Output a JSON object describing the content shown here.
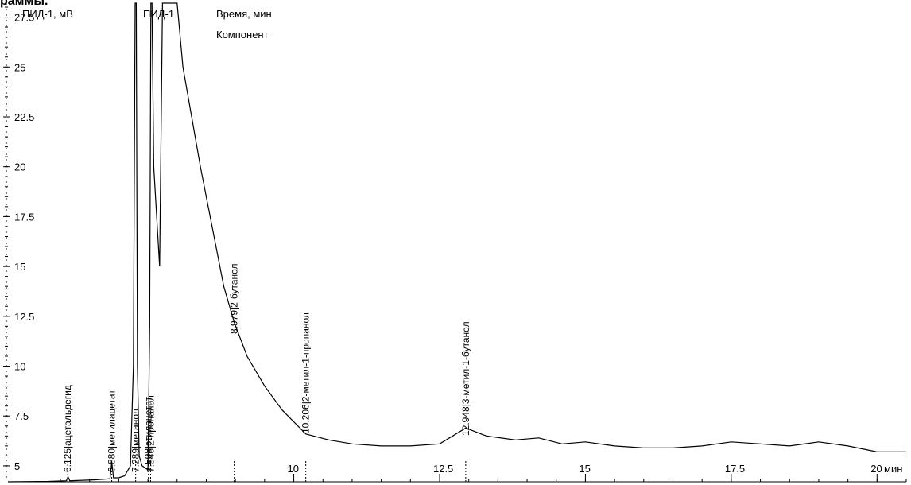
{
  "page_title_fragment": "раммы.",
  "chart_data": {
    "type": "line",
    "ylabel": "ПИД-1, мВ",
    "series_label": "ПИД-1",
    "legend": [
      "Время, мин",
      "Компонент"
    ],
    "x_unit": "мин",
    "xlim": [
      5.1,
      20.5
    ],
    "ylim": [
      4.2,
      28.2
    ],
    "x_ticks": [
      {
        "value": 10,
        "label": "10"
      },
      {
        "value": 12.5,
        "label": "12.5"
      },
      {
        "value": 15,
        "label": "15"
      },
      {
        "value": 17.5,
        "label": "17.5"
      },
      {
        "value": 20,
        "label": "20"
      }
    ],
    "y_ticks": [
      {
        "value": 5,
        "label": "5"
      },
      {
        "value": 7.5,
        "label": "7.5"
      },
      {
        "value": 10,
        "label": "10"
      },
      {
        "value": 12.5,
        "label": "12.5"
      },
      {
        "value": 15,
        "label": "15"
      },
      {
        "value": 17.5,
        "label": "17.5"
      },
      {
        "value": 20,
        "label": "20"
      },
      {
        "value": 22.5,
        "label": "22.5"
      },
      {
        "value": 25,
        "label": "25"
      },
      {
        "value": 27.5,
        "label": "27.5"
      }
    ],
    "series": [
      {
        "values": [
          [
            5.1,
            4.2
          ],
          [
            5.8,
            4.22
          ],
          [
            6.1,
            4.25
          ],
          [
            6.13,
            4.45
          ],
          [
            6.16,
            4.25
          ],
          [
            6.6,
            4.3
          ],
          [
            6.85,
            4.35
          ],
          [
            6.88,
            5.2
          ],
          [
            6.91,
            4.4
          ],
          [
            7.0,
            4.4
          ],
          [
            7.1,
            4.5
          ],
          [
            7.2,
            5.0
          ],
          [
            7.25,
            10.0
          ],
          [
            7.28,
            28.2
          ],
          [
            7.3,
            28.2
          ],
          [
            7.32,
            10.0
          ],
          [
            7.35,
            5.5
          ],
          [
            7.4,
            5.0
          ],
          [
            7.5,
            4.8
          ],
          [
            7.53,
            12.0
          ],
          [
            7.55,
            28.2
          ],
          [
            7.57,
            28.2
          ],
          [
            7.6,
            20.0
          ],
          [
            7.7,
            15.0
          ],
          [
            7.75,
            28.2
          ],
          [
            8.0,
            28.2
          ],
          [
            8.1,
            25.0
          ],
          [
            8.25,
            22.5
          ],
          [
            8.4,
            20.0
          ],
          [
            8.6,
            17.0
          ],
          [
            8.8,
            14.0
          ],
          [
            8.979,
            12.2
          ],
          [
            9.2,
            10.5
          ],
          [
            9.5,
            9.0
          ],
          [
            9.8,
            7.8
          ],
          [
            10.206,
            6.6
          ],
          [
            10.6,
            6.3
          ],
          [
            11.0,
            6.1
          ],
          [
            11.5,
            6.0
          ],
          [
            12.0,
            6.0
          ],
          [
            12.5,
            6.1
          ],
          [
            12.948,
            6.9
          ],
          [
            13.3,
            6.5
          ],
          [
            13.8,
            6.3
          ],
          [
            14.2,
            6.4
          ],
          [
            14.6,
            6.1
          ],
          [
            15.0,
            6.2
          ],
          [
            15.5,
            6.0
          ],
          [
            16.0,
            5.9
          ],
          [
            16.5,
            5.9
          ],
          [
            17.0,
            6.0
          ],
          [
            17.5,
            6.2
          ],
          [
            18.0,
            6.1
          ],
          [
            18.5,
            6.0
          ],
          [
            19.0,
            6.2
          ],
          [
            19.5,
            6.0
          ],
          [
            20.0,
            5.7
          ],
          [
            20.5,
            5.7
          ]
        ]
      }
    ],
    "peaks": [
      {
        "time": 6.125,
        "time_label": "6.125",
        "name": "ацетальдегид"
      },
      {
        "time": 6.88,
        "time_label": "6.880",
        "name": "метилацетат"
      },
      {
        "time": 7.289,
        "time_label": "7.289",
        "name": "метанол"
      },
      {
        "time": 7.508,
        "time_label": "7.508",
        "name": "этилацетат"
      },
      {
        "time": 7.546,
        "time_label": "7.546",
        "name": "2-пропанол"
      },
      {
        "time": 8.979,
        "time_label": "8.979",
        "name": "2-бутанол"
      },
      {
        "time": 10.206,
        "time_label": "10.206",
        "name": "2-метил-1-пропанол"
      },
      {
        "time": 12.948,
        "time_label": "12.948",
        "name": "3-метил-1-бутанол"
      }
    ]
  }
}
